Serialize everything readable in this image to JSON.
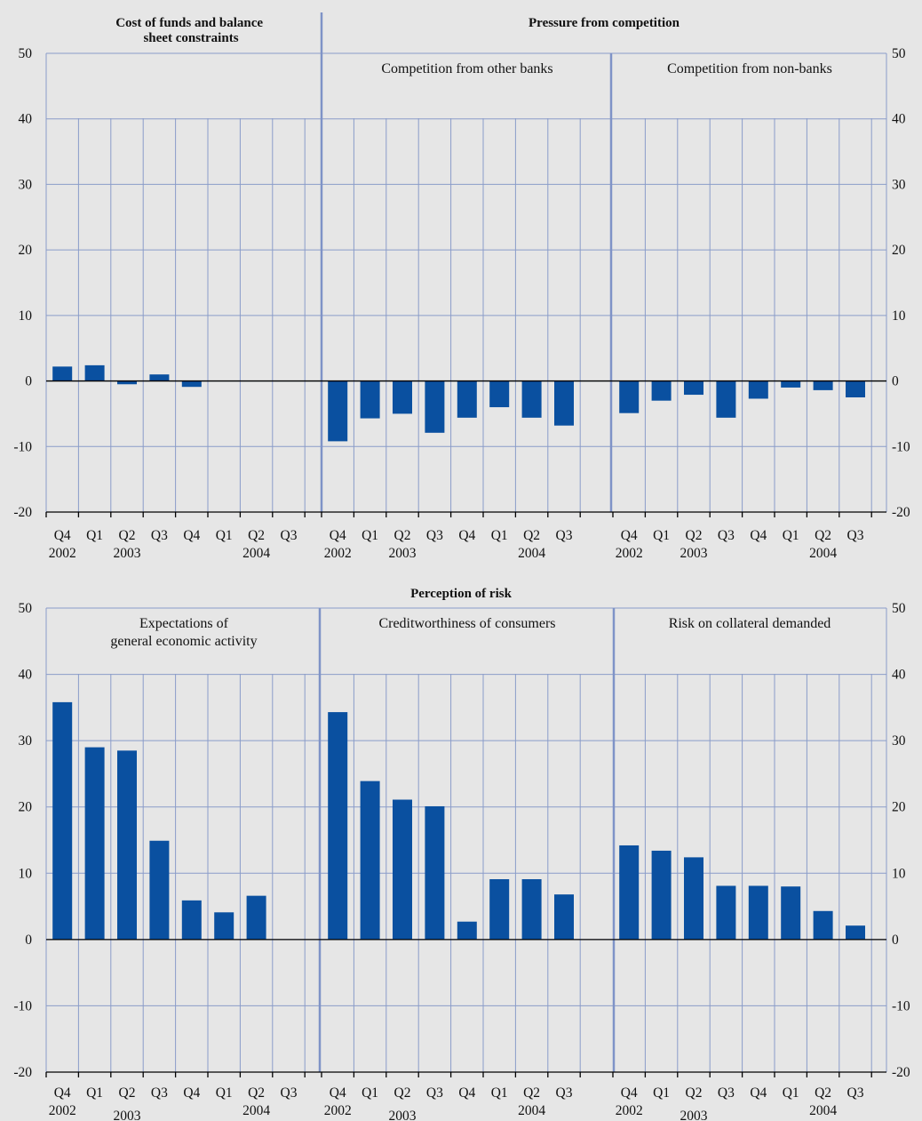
{
  "chart_data": [
    {
      "type": "bar",
      "headers": [
        "Cost of funds and balance sheet constraints",
        "Pressure from competition"
      ],
      "y_ticks": [
        "50",
        "40",
        "30",
        "20",
        "10",
        "0",
        "-10",
        "-20"
      ],
      "ylim": [
        -20,
        50
      ],
      "x_quarters": [
        "Q4",
        "Q1",
        "Q2",
        "Q3",
        "Q4",
        "Q1",
        "Q2",
        "Q3"
      ],
      "x_years": [
        "2002",
        "2003",
        "2004"
      ],
      "panels": [
        {
          "title": "",
          "values": [
            2.2,
            2.4,
            -0.5,
            1.0,
            -0.9,
            0,
            0,
            0
          ]
        },
        {
          "title": "Competition from other banks",
          "values": [
            -9.2,
            -5.7,
            -5.0,
            -7.9,
            -5.6,
            -4.0,
            -5.6,
            -6.8
          ]
        },
        {
          "title": "Competition from non-banks",
          "values": [
            -4.9,
            -3.0,
            -2.1,
            -5.6,
            -2.7,
            -1.0,
            -1.4,
            -2.5
          ]
        }
      ]
    },
    {
      "type": "bar",
      "headers": [
        "Perception of risk"
      ],
      "y_ticks": [
        "50",
        "40",
        "30",
        "20",
        "10",
        "0",
        "-10",
        "-20"
      ],
      "ylim": [
        -20,
        50
      ],
      "x_quarters": [
        "Q4",
        "Q1",
        "Q2",
        "Q3",
        "Q4",
        "Q1",
        "Q2",
        "Q3"
      ],
      "x_years": [
        "2002",
        "2003",
        "2004"
      ],
      "panels": [
        {
          "title_lines": [
            "Expectations of",
            "general economic activity"
          ],
          "values": [
            35.8,
            29.0,
            28.5,
            14.9,
            5.9,
            4.1,
            6.6,
            0
          ]
        },
        {
          "title_lines": [
            "Creditworthiness of consumers"
          ],
          "values": [
            34.3,
            23.9,
            21.1,
            20.1,
            2.7,
            9.1,
            9.1,
            6.8
          ]
        },
        {
          "title_lines": [
            "Risk on collateral demanded"
          ],
          "values": [
            14.2,
            13.4,
            12.4,
            8.1,
            8.1,
            8.0,
            4.3,
            2.1
          ]
        }
      ]
    }
  ]
}
